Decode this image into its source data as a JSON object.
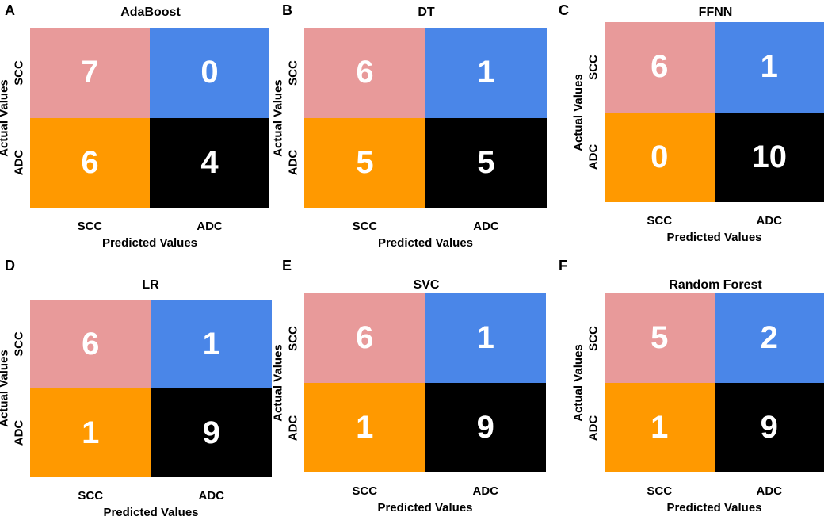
{
  "chart_data": [
    {
      "type": "heatmap",
      "panel_label": "A",
      "title": "AdaBoost",
      "ylabel": "Actual Values",
      "xlabel": "Predicted Values",
      "row_labels": [
        "SCC",
        "ADC"
      ],
      "col_labels": [
        "SCC",
        "ADC"
      ],
      "matrix": [
        [
          7,
          0
        ],
        [
          6,
          4
        ]
      ]
    },
    {
      "type": "heatmap",
      "panel_label": "B",
      "title": "DT",
      "ylabel": "Actual Values",
      "xlabel": "Predicted Values",
      "row_labels": [
        "SCC",
        "ADC"
      ],
      "col_labels": [
        "SCC",
        "ADC"
      ],
      "matrix": [
        [
          6,
          1
        ],
        [
          5,
          5
        ]
      ]
    },
    {
      "type": "heatmap",
      "panel_label": "C",
      "title": "FFNN",
      "ylabel": "Actual Values",
      "xlabel": "Predicted Values",
      "row_labels": [
        "SCC",
        "ADC"
      ],
      "col_labels": [
        "SCC",
        "ADC"
      ],
      "matrix": [
        [
          6,
          1
        ],
        [
          0,
          10
        ]
      ]
    },
    {
      "type": "heatmap",
      "panel_label": "D",
      "title": "LR",
      "ylabel": "Actual Values",
      "xlabel": "Predicted Values",
      "row_labels": [
        "SCC",
        "ADC"
      ],
      "col_labels": [
        "SCC",
        "ADC"
      ],
      "matrix": [
        [
          6,
          1
        ],
        [
          1,
          9
        ]
      ]
    },
    {
      "type": "heatmap",
      "panel_label": "E",
      "title": "SVC",
      "ylabel": "Actual Values",
      "xlabel": "Predicted Values",
      "row_labels": [
        "SCC",
        "ADC"
      ],
      "col_labels": [
        "SCC",
        "ADC"
      ],
      "matrix": [
        [
          6,
          1
        ],
        [
          1,
          9
        ]
      ]
    },
    {
      "type": "heatmap",
      "panel_label": "F",
      "title": "Random Forest",
      "ylabel": "Actual Values",
      "xlabel": "Predicted Values",
      "row_labels": [
        "SCC",
        "ADC"
      ],
      "col_labels": [
        "SCC",
        "ADC"
      ],
      "matrix": [
        [
          5,
          2
        ],
        [
          1,
          9
        ]
      ]
    }
  ],
  "colors": {
    "tp_scc": "#e89a9a",
    "fn_scc": "#4a86e8",
    "fp_adc": "#ff9900",
    "tn_adc": "#000000",
    "value_text": "#ffffff"
  }
}
